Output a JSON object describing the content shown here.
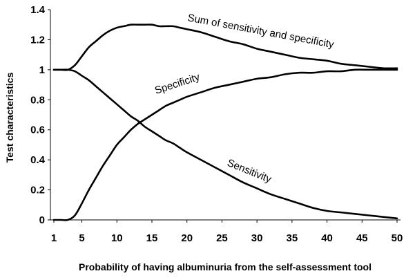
{
  "chart_data": {
    "type": "line",
    "title": "",
    "xlabel": "Probability of having albuminuria from the self-assessment tool",
    "ylabel": "Test characteristics",
    "xlim": [
      1,
      50
    ],
    "ylim": [
      0,
      1.4
    ],
    "x_ticks": [
      1,
      5,
      10,
      15,
      20,
      25,
      30,
      35,
      40,
      45,
      50
    ],
    "y_ticks": [
      0,
      0.2,
      0.4,
      0.6,
      0.8,
      1,
      1.2,
      1.4
    ],
    "y_tick_labels": [
      "0",
      "0.2",
      "0.4",
      "0.6",
      "0.8",
      "1",
      "1.2",
      "1.4"
    ],
    "grid": false,
    "legend": "none",
    "series": [
      {
        "name": "Sum of sensitivity and specificity",
        "x": [
          1,
          2,
          3,
          4,
          5,
          6,
          7,
          8,
          9,
          10,
          11,
          12,
          13,
          14,
          15,
          16,
          17,
          18,
          19,
          20,
          22,
          24,
          26,
          28,
          30,
          32,
          34,
          36,
          38,
          40,
          42,
          44,
          46,
          48,
          50
        ],
        "y": [
          1.0,
          1.0,
          1.0,
          1.03,
          1.09,
          1.15,
          1.19,
          1.23,
          1.26,
          1.28,
          1.29,
          1.3,
          1.3,
          1.3,
          1.3,
          1.29,
          1.29,
          1.29,
          1.28,
          1.27,
          1.25,
          1.22,
          1.19,
          1.17,
          1.14,
          1.12,
          1.1,
          1.08,
          1.07,
          1.06,
          1.04,
          1.03,
          1.02,
          1.01,
          1.01
        ]
      },
      {
        "name": "Specificity",
        "x": [
          1,
          2,
          3,
          4,
          5,
          6,
          7,
          8,
          9,
          10,
          11,
          12,
          13,
          14,
          15,
          16,
          17,
          18,
          19,
          20,
          22,
          24,
          26,
          28,
          30,
          32,
          34,
          36,
          38,
          40,
          42,
          44,
          46,
          48,
          50
        ],
        "y": [
          0.0,
          0.0,
          0.0,
          0.03,
          0.11,
          0.2,
          0.28,
          0.36,
          0.43,
          0.5,
          0.55,
          0.6,
          0.64,
          0.67,
          0.7,
          0.73,
          0.76,
          0.78,
          0.8,
          0.82,
          0.85,
          0.88,
          0.9,
          0.92,
          0.94,
          0.95,
          0.97,
          0.98,
          0.98,
          0.99,
          0.99,
          1.0,
          1.0,
          1.0,
          1.0
        ]
      },
      {
        "name": "Sensitivity",
        "x": [
          1,
          2,
          3,
          4,
          5,
          6,
          7,
          8,
          9,
          10,
          11,
          12,
          13,
          14,
          15,
          16,
          17,
          18,
          19,
          20,
          22,
          24,
          26,
          28,
          30,
          32,
          34,
          36,
          38,
          40,
          42,
          44,
          46,
          48,
          50
        ],
        "y": [
          1.0,
          1.0,
          1.0,
          0.99,
          0.96,
          0.93,
          0.89,
          0.85,
          0.81,
          0.77,
          0.73,
          0.69,
          0.66,
          0.62,
          0.59,
          0.56,
          0.53,
          0.51,
          0.48,
          0.45,
          0.4,
          0.35,
          0.3,
          0.25,
          0.21,
          0.17,
          0.14,
          0.11,
          0.08,
          0.06,
          0.05,
          0.04,
          0.03,
          0.02,
          0.01
        ]
      }
    ],
    "annotations": [
      {
        "text": "Sum of sensitivity and specificity",
        "series": 0
      },
      {
        "text": "Specificity",
        "series": 1
      },
      {
        "text": "Sensitivity",
        "series": 2
      }
    ]
  }
}
